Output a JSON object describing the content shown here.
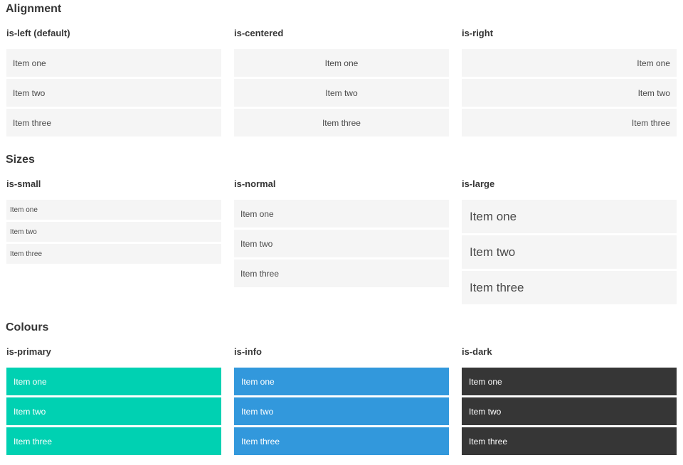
{
  "colors": {
    "primary": "#00d1b2",
    "info": "#3298dc",
    "dark": "#363636",
    "item-bg": "#f5f5f5",
    "item-text": "#4a4a4a",
    "heading-text": "#363636"
  },
  "sections": {
    "alignment": {
      "title": "Alignment",
      "columns": {
        "left": {
          "label": "is-left (default)",
          "items": [
            "Item one",
            "Item two",
            "Item three"
          ]
        },
        "centered": {
          "label": "is-centered",
          "items": [
            "Item one",
            "Item two",
            "Item three"
          ]
        },
        "right": {
          "label": "is-right",
          "items": [
            "Item one",
            "Item two",
            "Item three"
          ]
        }
      }
    },
    "sizes": {
      "title": "Sizes",
      "columns": {
        "small": {
          "label": "is-small",
          "items": [
            "Item one",
            "Item two",
            "Item three"
          ]
        },
        "normal": {
          "label": "is-normal",
          "items": [
            "Item one",
            "Item two",
            "Item three"
          ]
        },
        "large": {
          "label": "is-large",
          "items": [
            "Item one",
            "Item two",
            "Item three"
          ]
        }
      }
    },
    "colours": {
      "title": "Colours",
      "columns": {
        "primary": {
          "label": "is-primary",
          "items": [
            "Item one",
            "Item two",
            "Item three"
          ]
        },
        "info": {
          "label": "is-info",
          "items": [
            "Item one",
            "Item two",
            "Item three"
          ]
        },
        "dark": {
          "label": "is-dark",
          "items": [
            "Item one",
            "Item two",
            "Item three"
          ]
        }
      }
    }
  }
}
